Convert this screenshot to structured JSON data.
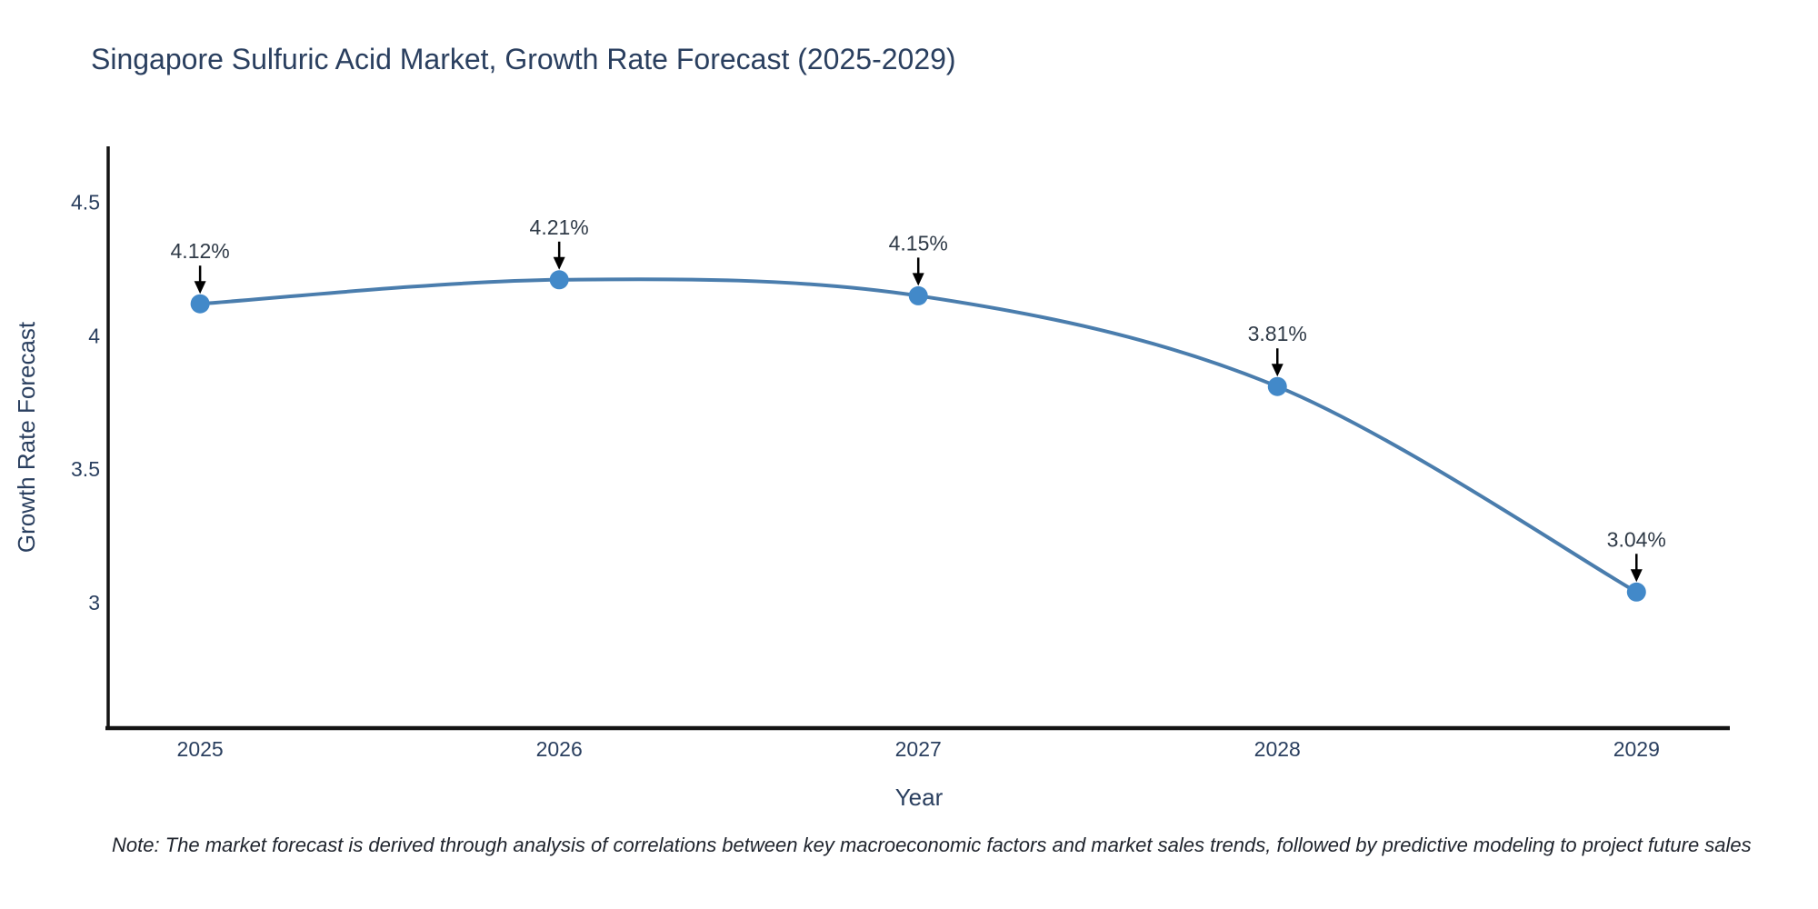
{
  "title": "Singapore Sulfuric Acid Market, Growth Rate Forecast (2025-2029)",
  "note": "Note: The market forecast is derived through analysis of correlations between key macroeconomic factors and market sales trends, followed by predictive modeling to project future sales",
  "colors": {
    "background": "#ffffff",
    "line": "#4a7dad",
    "marker": "#4289c9",
    "axis": "#131313",
    "text": "#2a3f5f",
    "annotation": "#2f3a47",
    "arrow": "#000000",
    "note_text": "#20252e"
  },
  "chart_data": {
    "type": "line",
    "title": "Singapore Sulfuric Acid Market, Growth Rate Forecast (2025-2029)",
    "xlabel": "Year",
    "ylabel": "Growth Rate Forecast",
    "x": [
      2025,
      2026,
      2027,
      2028,
      2029
    ],
    "values": [
      4.12,
      4.21,
      4.15,
      3.81,
      3.04
    ],
    "point_labels": [
      "4.12%",
      "4.21%",
      "4.15%",
      "3.81%",
      "3.04%"
    ],
    "series_name": "Growth Rate Forecast",
    "yticks": [
      4.5,
      4.0,
      3.5,
      3.0
    ],
    "ytick_labels": [
      "4.5",
      "4",
      "3.5",
      "3"
    ],
    "xtick_labels": [
      "2025",
      "2026",
      "2027",
      "2028",
      "2029"
    ],
    "xlim": [
      2024.744,
      2029.26
    ],
    "ylim": [
      2.53,
      4.71
    ],
    "grid": false,
    "legend": "none",
    "line_shape": "spline",
    "annotation_style": "value labels above points with downward black arrows"
  }
}
